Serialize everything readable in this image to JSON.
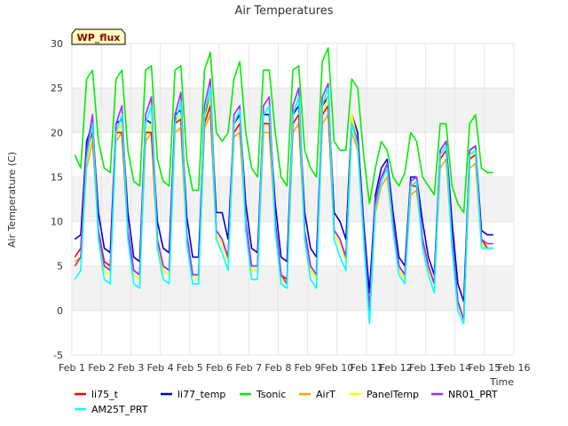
{
  "chart_data": {
    "type": "line",
    "title": "Air Temperatures",
    "xlabel": "Time",
    "ylabel": "Air Temperature (C)",
    "badge": "WP_flux",
    "x_ticks": [
      "Feb 1",
      "Feb 2",
      "Feb 3",
      "Feb 4",
      "Feb 5",
      "Feb 6",
      "Feb 7",
      "Feb 8",
      "Feb 9",
      "Feb 10",
      "Feb 11",
      "Feb 12",
      "Feb 13",
      "Feb 14",
      "Feb 15",
      "Feb 16"
    ],
    "xlim": [
      1,
      16
    ],
    "ylim": [
      -5,
      30
    ],
    "y_ticks": [
      -5,
      0,
      5,
      10,
      15,
      20,
      25,
      30
    ],
    "grid": true,
    "legend_position": "bottom",
    "x": [
      1.1,
      1.3,
      1.5,
      1.7,
      1.9,
      2.1,
      2.3,
      2.5,
      2.7,
      2.9,
      3.1,
      3.3,
      3.5,
      3.7,
      3.9,
      4.1,
      4.3,
      4.5,
      4.7,
      4.9,
      5.1,
      5.3,
      5.5,
      5.7,
      5.9,
      6.1,
      6.3,
      6.5,
      6.7,
      6.9,
      7.1,
      7.3,
      7.5,
      7.7,
      7.9,
      8.1,
      8.3,
      8.5,
      8.7,
      8.9,
      9.1,
      9.3,
      9.5,
      9.7,
      9.9,
      10.1,
      10.3,
      10.5,
      10.7,
      10.9,
      11.1,
      11.3,
      11.5,
      11.7,
      11.9,
      12.1,
      12.3,
      12.5,
      12.7,
      12.9,
      13.1,
      13.3,
      13.5,
      13.7,
      13.9,
      14.1,
      14.3,
      14.5,
      14.7,
      14.9,
      15.1,
      15.3
    ],
    "series": [
      {
        "name": "li75_t",
        "color": "#ff0000",
        "values": [
          6.0,
          7.0,
          18.0,
          20.0,
          9.0,
          5.5,
          5.0,
          20.0,
          20.0,
          9.0,
          4.5,
          4.0,
          20.0,
          20.0,
          8.0,
          5.0,
          4.5,
          21.0,
          21.5,
          8.5,
          4.0,
          4.0,
          21.0,
          23.0,
          9.0,
          8.0,
          6.0,
          20.0,
          21.0,
          10.0,
          5.0,
          5.0,
          21.0,
          21.0,
          10.0,
          4.0,
          3.5,
          21.0,
          22.0,
          9.0,
          5.0,
          4.0,
          22.0,
          23.0,
          9.0,
          8.0,
          6.0,
          21.0,
          19.0,
          9.0,
          0.0,
          12.0,
          15.0,
          16.0,
          10.0,
          5.0,
          4.0,
          14.0,
          14.0,
          8.0,
          5.0,
          3.0,
          17.0,
          18.0,
          8.0,
          1.0,
          -1.0,
          17.0,
          17.5,
          8.0,
          7.0,
          7.0
        ]
      },
      {
        "name": "li77_temp",
        "color": "#0000cc",
        "values": [
          8.0,
          8.5,
          19.0,
          21.0,
          11.0,
          7.0,
          6.5,
          21.0,
          21.5,
          11.0,
          6.0,
          5.5,
          21.5,
          21.0,
          10.0,
          7.0,
          6.5,
          22.0,
          22.5,
          10.5,
          6.0,
          6.0,
          22.0,
          24.0,
          11.0,
          11.0,
          8.0,
          21.0,
          22.0,
          12.0,
          7.0,
          6.5,
          22.0,
          22.0,
          12.0,
          6.0,
          5.5,
          22.0,
          23.0,
          11.0,
          7.0,
          6.0,
          23.0,
          24.0,
          11.0,
          10.0,
          8.0,
          22.0,
          20.0,
          10.0,
          2.0,
          13.0,
          16.0,
          17.0,
          11.0,
          6.0,
          5.0,
          15.0,
          15.0,
          10.0,
          6.0,
          4.0,
          18.0,
          19.0,
          10.0,
          3.0,
          1.0,
          18.0,
          18.5,
          9.0,
          8.5,
          8.5
        ]
      },
      {
        "name": "Tsonic",
        "color": "#00ee00",
        "values": [
          17.5,
          16.0,
          26.0,
          27.0,
          19.0,
          16.0,
          15.5,
          26.0,
          27.0,
          18.0,
          14.5,
          14.0,
          27.0,
          27.5,
          17.0,
          14.5,
          14.0,
          27.0,
          27.5,
          17.0,
          13.5,
          13.5,
          27.0,
          29.0,
          20.0,
          19.0,
          20.0,
          26.0,
          28.0,
          20.0,
          16.0,
          15.0,
          27.0,
          27.0,
          20.0,
          15.0,
          14.0,
          27.0,
          27.5,
          18.0,
          16.0,
          15.0,
          28.0,
          29.5,
          19.0,
          18.0,
          18.0,
          26.0,
          25.0,
          17.5,
          12.0,
          16.0,
          19.0,
          18.0,
          15.0,
          14.0,
          15.5,
          20.0,
          19.0,
          15.0,
          14.0,
          13.0,
          21.0,
          21.0,
          14.0,
          12.0,
          11.0,
          21.0,
          22.0,
          16.0,
          15.5,
          15.5
        ]
      },
      {
        "name": "AirT",
        "color": "#ffa500",
        "values": [
          5.5,
          6.0,
          16.0,
          19.0,
          9.0,
          5.0,
          4.5,
          19.0,
          20.0,
          8.5,
          4.0,
          3.5,
          19.0,
          20.0,
          7.5,
          4.5,
          4.0,
          20.0,
          20.5,
          8.0,
          4.0,
          3.5,
          20.5,
          22.0,
          8.5,
          7.5,
          5.5,
          19.5,
          20.0,
          9.5,
          4.5,
          4.5,
          20.0,
          20.0,
          9.5,
          3.5,
          3.0,
          20.0,
          21.0,
          8.5,
          4.5,
          3.5,
          21.0,
          22.0,
          8.5,
          7.5,
          5.5,
          20.0,
          18.0,
          8.5,
          0.0,
          11.0,
          14.0,
          15.0,
          9.0,
          4.5,
          3.5,
          13.0,
          13.5,
          7.5,
          4.5,
          3.0,
          16.0,
          17.0,
          7.5,
          0.5,
          -1.0,
          16.0,
          16.5,
          7.5,
          7.0,
          7.0
        ]
      },
      {
        "name": "PanelTemp",
        "color": "#ffff00",
        "values": [
          5.0,
          5.5,
          17.0,
          20.0,
          8.5,
          4.5,
          4.0,
          19.5,
          21.0,
          8.0,
          4.0,
          3.5,
          19.5,
          21.0,
          7.5,
          4.5,
          4.0,
          21.0,
          22.0,
          8.0,
          4.0,
          3.5,
          21.0,
          24.0,
          8.5,
          7.5,
          5.5,
          20.0,
          21.0,
          9.5,
          4.5,
          4.5,
          21.0,
          21.0,
          9.5,
          3.5,
          3.0,
          21.0,
          22.0,
          8.5,
          4.5,
          3.5,
          22.0,
          24.0,
          8.5,
          7.5,
          5.5,
          22.0,
          19.0,
          8.5,
          0.0,
          12.0,
          15.0,
          16.0,
          9.0,
          4.5,
          3.5,
          14.0,
          14.0,
          7.5,
          4.5,
          3.0,
          17.0,
          18.0,
          7.5,
          0.5,
          -1.0,
          17.0,
          18.0,
          7.5,
          7.0,
          7.0
        ]
      },
      {
        "name": "NR01_PRT",
        "color": "#9b30ff",
        "values": [
          5.0,
          6.0,
          18.0,
          22.0,
          9.0,
          5.0,
          4.5,
          21.0,
          23.0,
          9.0,
          4.5,
          4.0,
          22.0,
          24.0,
          8.0,
          5.0,
          4.5,
          22.0,
          24.5,
          8.5,
          4.0,
          4.0,
          23.0,
          26.0,
          9.0,
          8.0,
          6.0,
          22.0,
          23.0,
          10.0,
          5.0,
          5.0,
          23.0,
          24.0,
          10.0,
          4.0,
          3.0,
          23.0,
          25.0,
          9.0,
          5.0,
          4.0,
          24.0,
          25.5,
          9.0,
          8.0,
          6.0,
          21.0,
          19.0,
          9.0,
          0.0,
          12.5,
          15.0,
          16.5,
          10.0,
          5.0,
          4.0,
          14.5,
          15.0,
          8.0,
          5.0,
          3.0,
          18.0,
          19.0,
          8.0,
          1.0,
          -1.0,
          18.0,
          18.5,
          8.0,
          7.5,
          7.5
        ]
      },
      {
        "name": "AM25T_PRT",
        "color": "#00ffff",
        "values": [
          3.5,
          4.5,
          17.0,
          21.0,
          8.0,
          3.5,
          3.0,
          20.0,
          22.0,
          8.0,
          3.0,
          2.5,
          21.0,
          23.0,
          7.0,
          3.5,
          3.0,
          21.0,
          23.5,
          7.5,
          3.0,
          3.0,
          22.0,
          25.0,
          8.0,
          6.5,
          4.5,
          21.0,
          22.5,
          9.0,
          3.5,
          3.5,
          22.0,
          23.0,
          9.0,
          3.0,
          2.5,
          22.0,
          24.0,
          8.0,
          3.5,
          2.5,
          23.0,
          25.0,
          8.0,
          6.0,
          4.5,
          21.0,
          18.5,
          8.0,
          -1.5,
          11.5,
          14.5,
          16.0,
          9.0,
          4.0,
          3.0,
          14.0,
          14.5,
          7.0,
          4.0,
          2.0,
          17.5,
          18.5,
          7.0,
          0.0,
          -1.5,
          17.5,
          18.0,
          7.0,
          7.0,
          7.0
        ]
      }
    ]
  }
}
